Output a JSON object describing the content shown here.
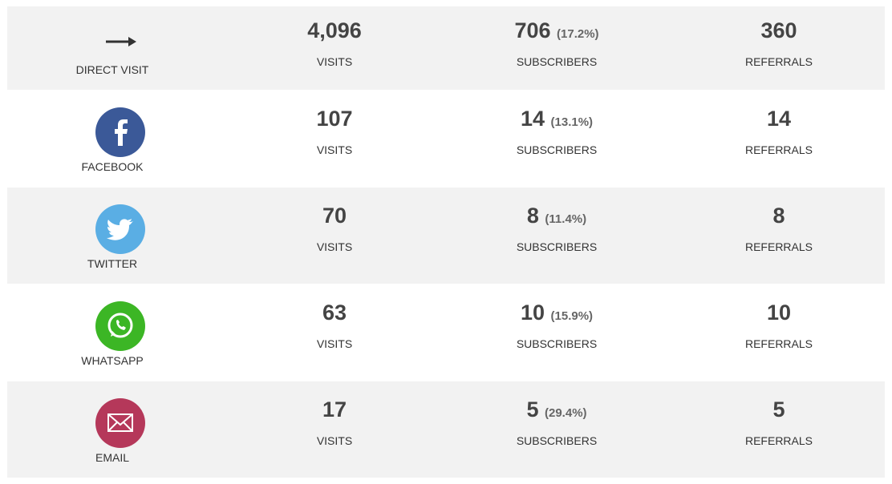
{
  "labels": {
    "visits": "VISITS",
    "subscribers": "SUBSCRIBERS",
    "referrals": "REFERRALS"
  },
  "rows": [
    {
      "source": "DIRECT VISIT",
      "visits": "4,096",
      "subscribers": "706",
      "subscriber_pct": "(17.2%)",
      "referrals": "360"
    },
    {
      "source": "FACEBOOK",
      "visits": "107",
      "subscribers": "14",
      "subscriber_pct": "(13.1%)",
      "referrals": "14"
    },
    {
      "source": "TWITTER",
      "visits": "70",
      "subscribers": "8",
      "subscriber_pct": "(11.4%)",
      "referrals": "8"
    },
    {
      "source": "WHATSAPP",
      "visits": "63",
      "subscribers": "10",
      "subscriber_pct": "(15.9%)",
      "referrals": "10"
    },
    {
      "source": "EMAIL",
      "visits": "17",
      "subscribers": "5",
      "subscriber_pct": "(29.4%)",
      "referrals": "5"
    }
  ]
}
